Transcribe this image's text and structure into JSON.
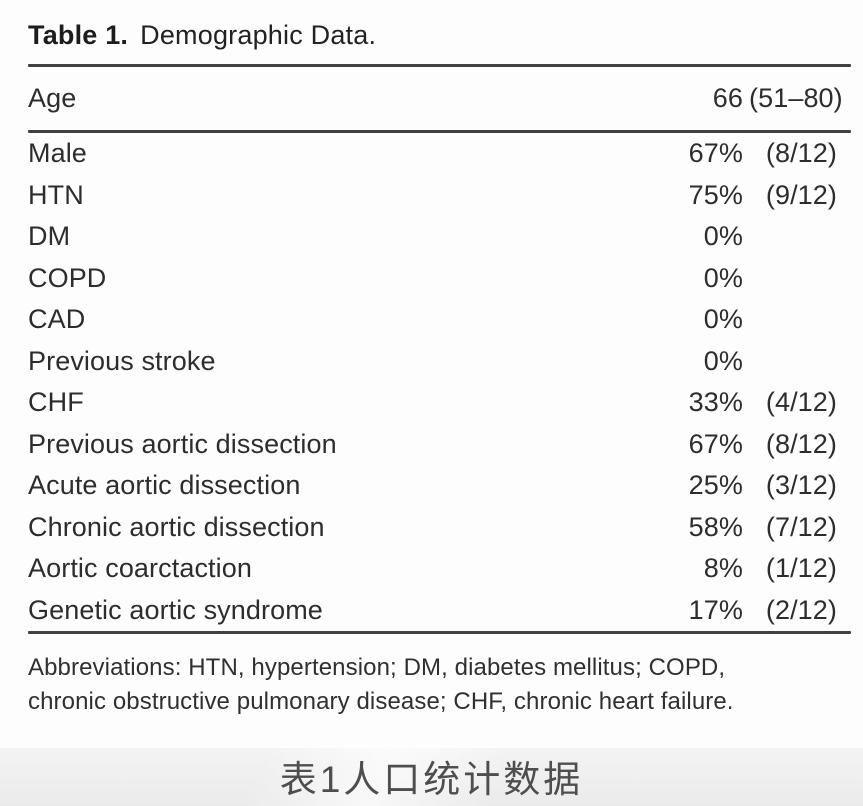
{
  "table": {
    "title_bold": "Table 1.",
    "title_rest": "Demographic Data.",
    "age_row": {
      "label": "Age",
      "value_main": "66",
      "value_range": "(51–80)"
    },
    "rows": [
      {
        "label": "Male",
        "pct": "67%",
        "frac": "(8/12)"
      },
      {
        "label": "HTN",
        "pct": "75%",
        "frac": "(9/12)"
      },
      {
        "label": "DM",
        "pct": "0%",
        "frac": ""
      },
      {
        "label": "COPD",
        "pct": "0%",
        "frac": ""
      },
      {
        "label": "CAD",
        "pct": "0%",
        "frac": ""
      },
      {
        "label": "Previous stroke",
        "pct": "0%",
        "frac": ""
      },
      {
        "label": "CHF",
        "pct": "33%",
        "frac": "(4/12)"
      },
      {
        "label": "Previous aortic dissection",
        "pct": "67%",
        "frac": "(8/12)"
      },
      {
        "label": "Acute aortic dissection",
        "pct": "25%",
        "frac": "(3/12)"
      },
      {
        "label": "Chronic aortic dissection",
        "pct": "58%",
        "frac": "(7/12)"
      },
      {
        "label": "Aortic coarctaction",
        "pct": "8%",
        "frac": "(1/12)"
      },
      {
        "label": "Genetic aortic syndrome",
        "pct": "17%",
        "frac": "(2/12)"
      }
    ],
    "footnote_lines": [
      "Abbreviations: HTN, hypertension; DM, diabetes mellitus; COPD,",
      "chronic obstructive pulmonary disease; CHF, chronic heart failure."
    ]
  },
  "caption": {
    "text": "表1人口统计数据"
  },
  "colors": {
    "text": "#2d2d2d",
    "rule": "#414141",
    "caption_text": "#4e4e4e",
    "caption_band_bg": "#efefef",
    "page_bg": "#fdfdfd"
  }
}
